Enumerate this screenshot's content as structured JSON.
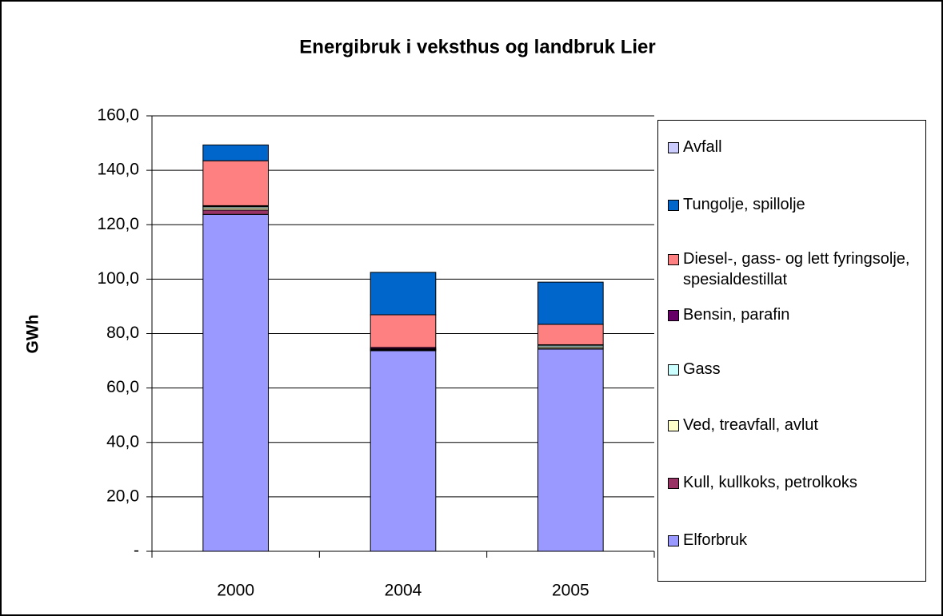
{
  "chart_data": {
    "type": "stacked-bar",
    "title": "Energibruk i veksthus og landbruk Lier",
    "ylabel": "GWh",
    "categories": [
      "2000",
      "2004",
      "2005"
    ],
    "series": [
      {
        "name": "Elforbruk",
        "color": "#9999ff",
        "values": [
          123.8,
          73.7,
          74.3
        ]
      },
      {
        "name": "Kull, kullkoks, petrolkoks",
        "color": "#993366",
        "values": [
          1.6,
          0.3,
          0.2
        ]
      },
      {
        "name": "Ved, treavfall, avlut",
        "color": "#ffffcc",
        "values": [
          0.8,
          0.2,
          0.6
        ]
      },
      {
        "name": "Gass",
        "color": "#ccffff",
        "values": [
          0.5,
          0.2,
          0.6
        ]
      },
      {
        "name": "Bensin, parafin",
        "color": "#660066",
        "values": [
          0.3,
          0.5,
          0.2
        ]
      },
      {
        "name": "Diesel-, gass- og lett fyringsolje, spesialdestillat",
        "color": "#ff8080",
        "values": [
          16.5,
          12.0,
          7.5
        ]
      },
      {
        "name": "Tungolje, spillolje",
        "color": "#0066cc",
        "values": [
          5.8,
          15.6,
          15.5
        ]
      },
      {
        "name": "Avfall",
        "color": "#ccccff",
        "values": [
          0,
          0,
          0
        ]
      }
    ],
    "ylim": [
      0,
      160
    ],
    "yticks": [
      {
        "value": 0,
        "label": "-"
      },
      {
        "value": 20,
        "label": "20,0"
      },
      {
        "value": 40,
        "label": "40,0"
      },
      {
        "value": 60,
        "label": "60,0"
      },
      {
        "value": 80,
        "label": "80,0"
      },
      {
        "value": 100,
        "label": "100,0"
      },
      {
        "value": 120,
        "label": "120,0"
      },
      {
        "value": 140,
        "label": "140,0"
      },
      {
        "value": 160,
        "label": "160,0"
      }
    ],
    "grid": true,
    "legend": "right"
  }
}
